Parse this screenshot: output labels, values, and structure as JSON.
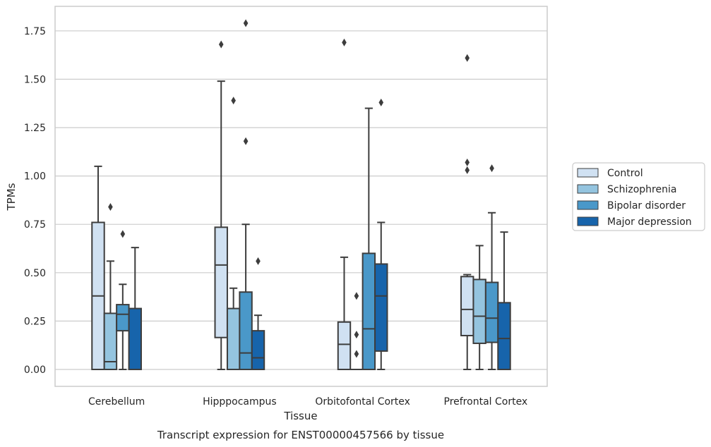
{
  "chart_data": {
    "type": "box",
    "title": "",
    "caption": "Transcript expression for ENST00000457566 by tissue",
    "xlabel": "Tissue",
    "ylabel": "TPMs",
    "ylim": [
      -0.085,
      1.88
    ],
    "yticks": [
      "0.00",
      "0.25",
      "0.50",
      "0.75",
      "1.00",
      "1.25",
      "1.50",
      "1.75"
    ],
    "grid": "horizontal",
    "legend_position": "right",
    "categories": [
      "Cerebellum",
      "Hipppocampus",
      "Orbitofontal Cortex",
      "Prefrontal Cortex"
    ],
    "series": [
      {
        "name": "Control",
        "color": "#d0e1f2",
        "boxes": [
          {
            "whisker_low": 0.0,
            "q1": 0.0,
            "median": 0.38,
            "q3": 0.76,
            "whisker_high": 1.05,
            "outliers": []
          },
          {
            "whisker_low": 0.0,
            "q1": 0.165,
            "median": 0.54,
            "q3": 0.735,
            "whisker_high": 1.49,
            "outliers": [
              1.68
            ]
          },
          {
            "whisker_low": 0.0,
            "q1": 0.0,
            "median": 0.13,
            "q3": 0.245,
            "whisker_high": 0.58,
            "outliers": [
              1.69
            ]
          },
          {
            "whisker_low": 0.0,
            "q1": 0.175,
            "median": 0.31,
            "q3": 0.48,
            "whisker_high": 0.49,
            "outliers": [
              1.03,
              1.07,
              1.61
            ]
          }
        ]
      },
      {
        "name": "Schizophrenia",
        "color": "#94c4df",
        "boxes": [
          {
            "whisker_low": 0.0,
            "q1": 0.0,
            "median": 0.04,
            "q3": 0.29,
            "whisker_high": 0.56,
            "outliers": [
              0.84
            ]
          },
          {
            "whisker_low": 0.0,
            "q1": 0.0,
            "median": 0.0,
            "q3": 0.315,
            "whisker_high": 0.42,
            "outliers": [
              1.39
            ]
          },
          {
            "whisker_low": 0.0,
            "q1": 0.0,
            "median": 0.0,
            "q3": 0.0,
            "whisker_high": 0.0,
            "outliers": [
              0.08,
              0.18,
              0.38
            ]
          },
          {
            "whisker_low": 0.0,
            "q1": 0.135,
            "median": 0.275,
            "q3": 0.465,
            "whisker_high": 0.64,
            "outliers": []
          }
        ]
      },
      {
        "name": "Bipolar disorder",
        "color": "#4a98c9",
        "boxes": [
          {
            "whisker_low": 0.0,
            "q1": 0.2,
            "median": 0.285,
            "q3": 0.335,
            "whisker_high": 0.44,
            "outliers": [
              0.7
            ]
          },
          {
            "whisker_low": 0.0,
            "q1": 0.0,
            "median": 0.085,
            "q3": 0.4,
            "whisker_high": 0.75,
            "outliers": [
              1.18,
              1.79
            ]
          },
          {
            "whisker_low": 0.0,
            "q1": 0.0,
            "median": 0.21,
            "q3": 0.6,
            "whisker_high": 1.35,
            "outliers": []
          },
          {
            "whisker_low": 0.0,
            "q1": 0.14,
            "median": 0.265,
            "q3": 0.45,
            "whisker_high": 0.81,
            "outliers": [
              1.04
            ]
          }
        ]
      },
      {
        "name": "Major depression",
        "color": "#1764ab",
        "boxes": [
          {
            "whisker_low": 0.0,
            "q1": 0.0,
            "median": 0.0,
            "q3": 0.315,
            "whisker_high": 0.63,
            "outliers": []
          },
          {
            "whisker_low": 0.0,
            "q1": 0.0,
            "median": 0.06,
            "q3": 0.2,
            "whisker_high": 0.28,
            "outliers": [
              0.56
            ]
          },
          {
            "whisker_low": 0.0,
            "q1": 0.095,
            "median": 0.38,
            "q3": 0.545,
            "whisker_high": 0.76,
            "outliers": [
              1.38
            ]
          },
          {
            "whisker_low": 0.0,
            "q1": 0.0,
            "median": 0.16,
            "q3": 0.345,
            "whisker_high": 0.71,
            "outliers": []
          }
        ]
      }
    ]
  }
}
